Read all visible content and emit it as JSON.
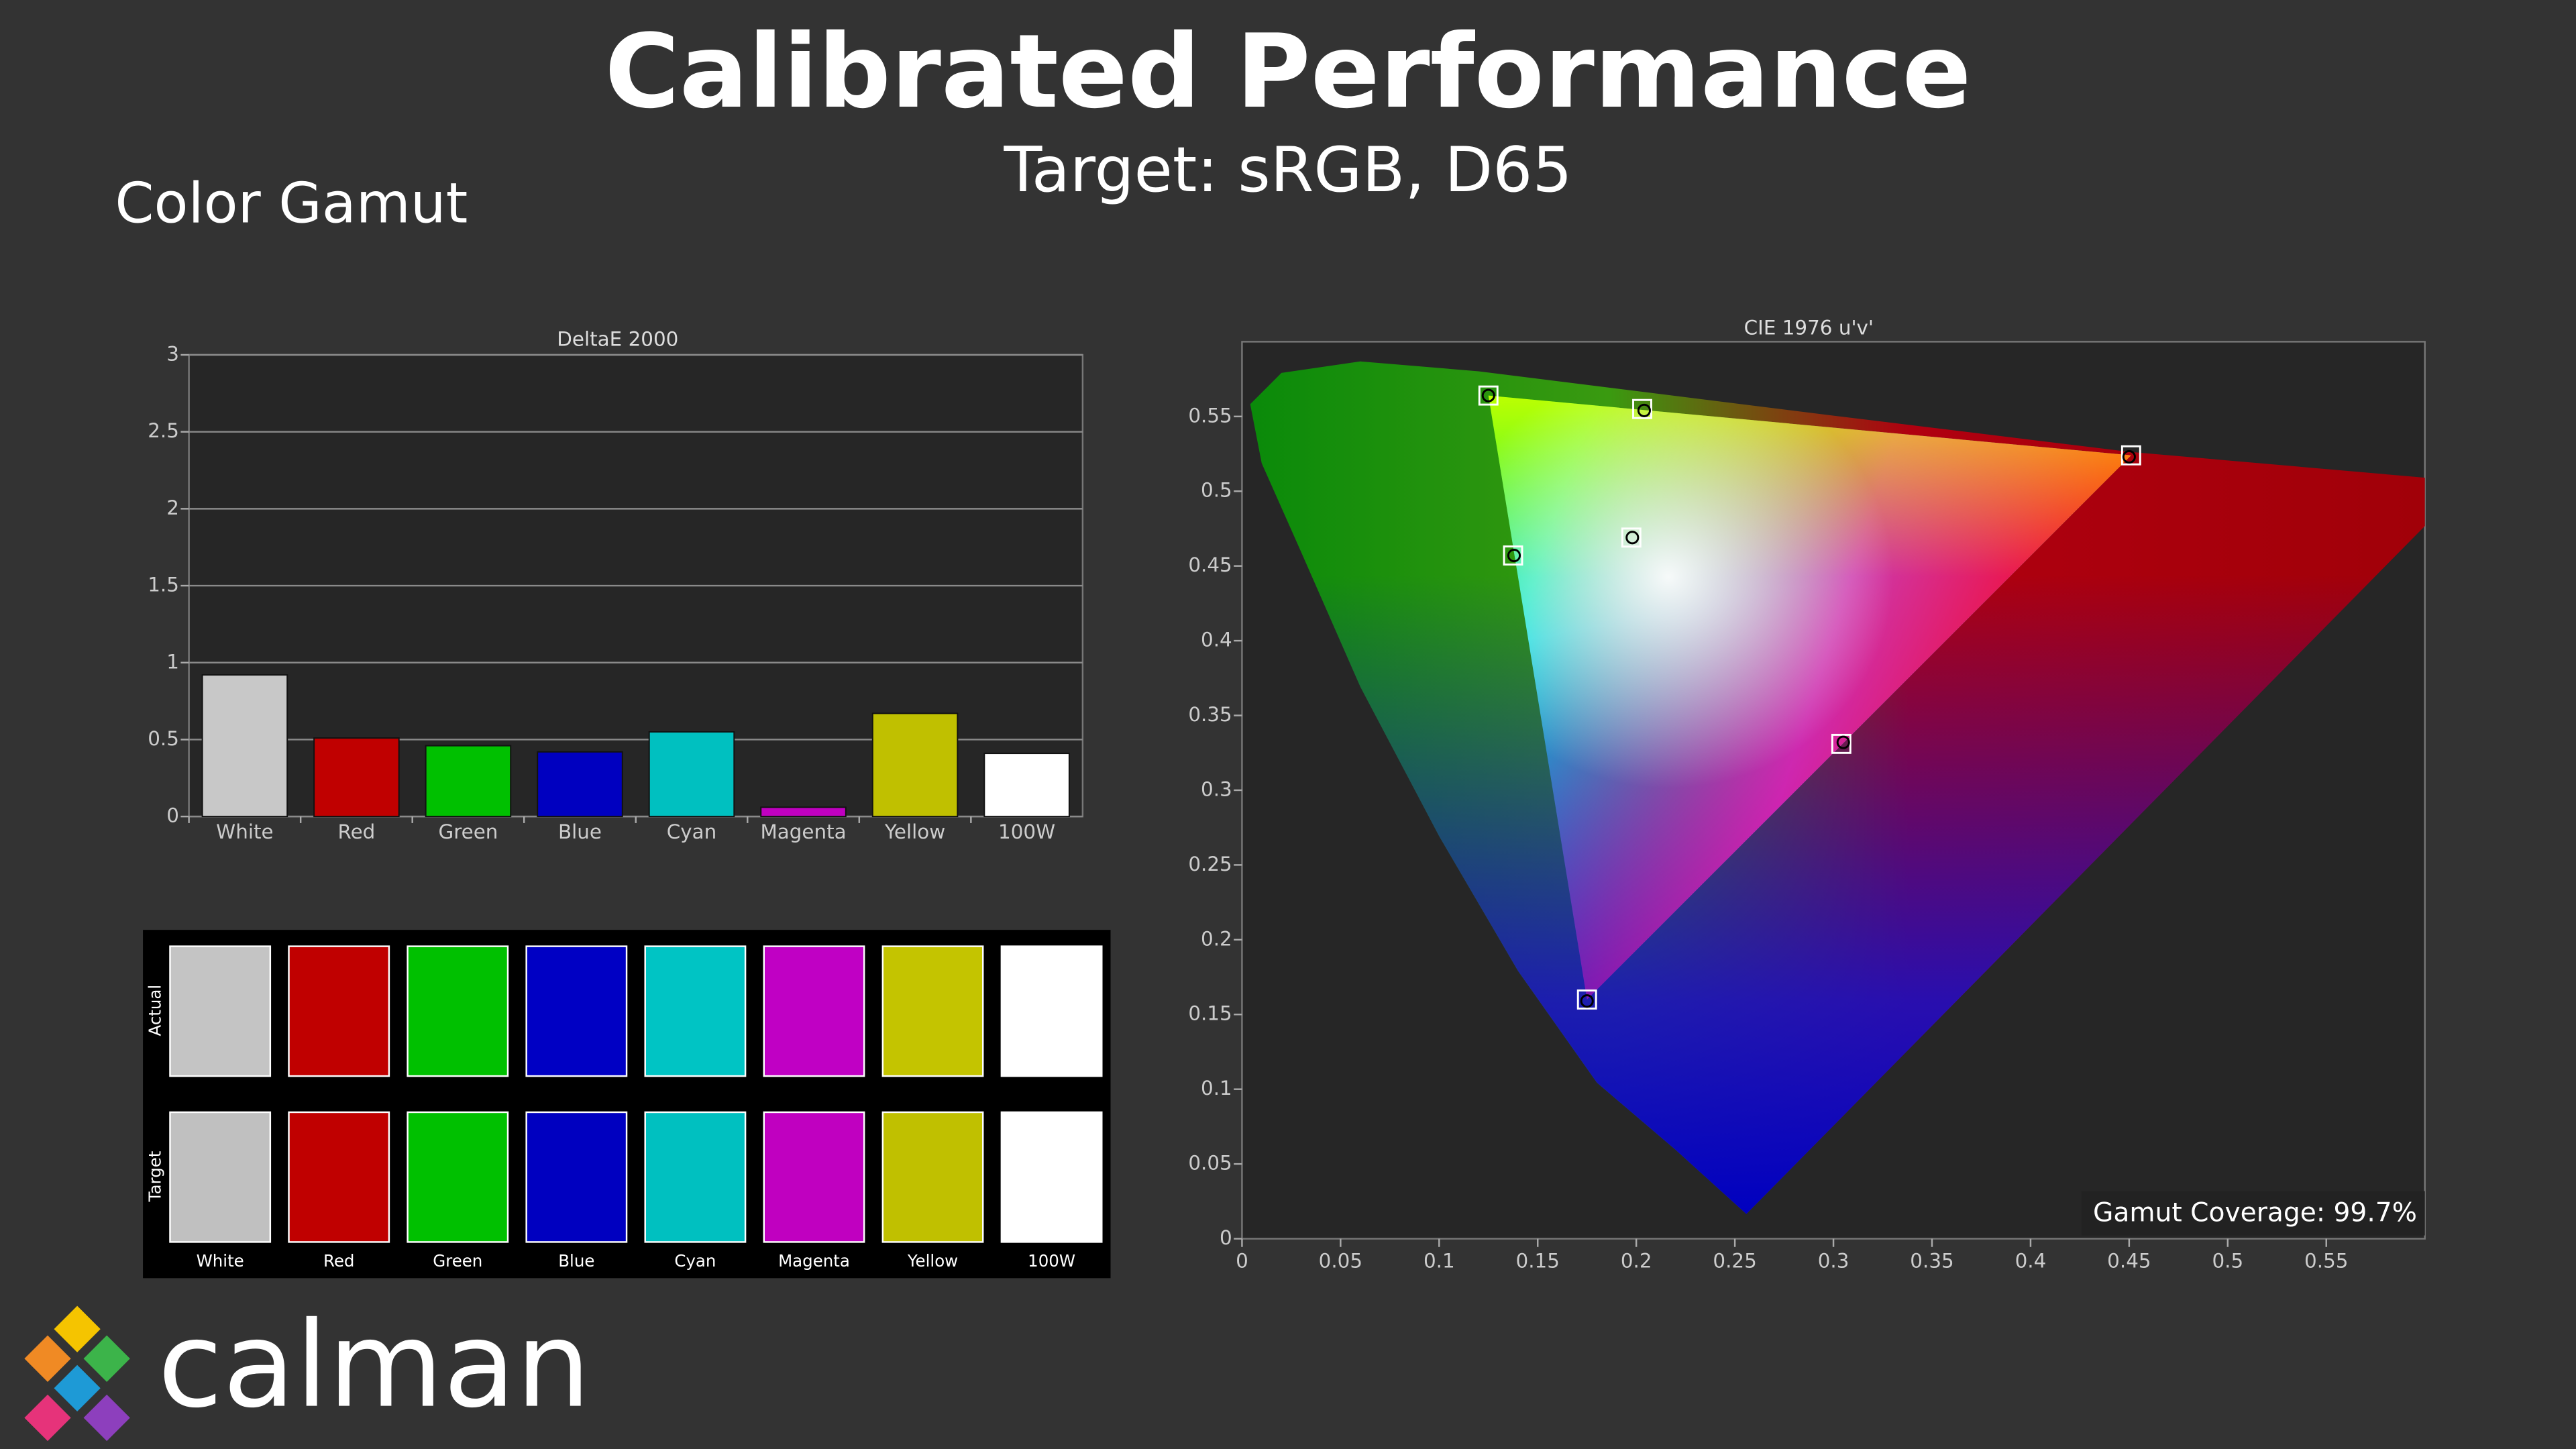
{
  "header": {
    "title": "Calibrated Performance",
    "subtitle": "Target: sRGB, D65",
    "section": "Color Gamut"
  },
  "chart_data": [
    {
      "type": "bar",
      "title": "DeltaE 2000",
      "categories": [
        "White",
        "Red",
        "Green",
        "Blue",
        "Cyan",
        "Magenta",
        "Yellow",
        "100W"
      ],
      "values": [
        0.92,
        0.51,
        0.46,
        0.42,
        0.55,
        0.06,
        0.67,
        0.41
      ],
      "colors": [
        "#c8c8c8",
        "#c00000",
        "#00c000",
        "#0000c0",
        "#00c0c0",
        "#c000c0",
        "#c0c000",
        "#ffffff"
      ],
      "ylim": [
        0,
        3
      ],
      "yticks": [
        0,
        0.5,
        1,
        1.5,
        2,
        2.5,
        3
      ],
      "grid": true
    },
    {
      "type": "scatter",
      "title": "CIE 1976 u'v'",
      "xlim": [
        0,
        0.6
      ],
      "ylim": [
        0,
        0.6
      ],
      "xticks": [
        0,
        0.05,
        0.1,
        0.15,
        0.2,
        0.25,
        0.3,
        0.35,
        0.4,
        0.45,
        0.5,
        0.55
      ],
      "yticks": [
        0,
        0.05,
        0.1,
        0.15,
        0.2,
        0.25,
        0.3,
        0.35,
        0.4,
        0.45,
        0.5,
        0.55
      ],
      "grid": false,
      "series": [
        {
          "marker": "square",
          "color": "#ffffff",
          "x": [
            0.451,
            0.125,
            0.175,
            0.1375,
            0.304,
            0.203,
            0.1975
          ],
          "y": [
            0.524,
            0.564,
            0.16,
            0.457,
            0.331,
            0.555,
            0.469
          ]
        },
        {
          "marker": "circle",
          "color": "#000000",
          "x": [
            0.45,
            0.125,
            0.175,
            0.138,
            0.305,
            0.204,
            0.198
          ],
          "y": [
            0.523,
            0.564,
            0.159,
            0.457,
            0.332,
            0.554,
            0.469
          ]
        }
      ],
      "annotation": "Gamut Coverage:  99.7%"
    }
  ],
  "swatches": {
    "row_labels": [
      "Actual",
      "Target"
    ],
    "labels": [
      "White",
      "Red",
      "Green",
      "Blue",
      "Cyan",
      "Magenta",
      "Yellow",
      "100W"
    ],
    "actual_colors": [
      "#c4c4c4",
      "#c00000",
      "#00c000",
      "#0000c4",
      "#00c4c4",
      "#c000c4",
      "#c4c400",
      "#ffffff"
    ],
    "target_colors": [
      "#c0c0c0",
      "#c00000",
      "#00c000",
      "#0000c0",
      "#00c0c0",
      "#c000c0",
      "#c0c000",
      "#ffffff"
    ]
  },
  "logo": "calman"
}
